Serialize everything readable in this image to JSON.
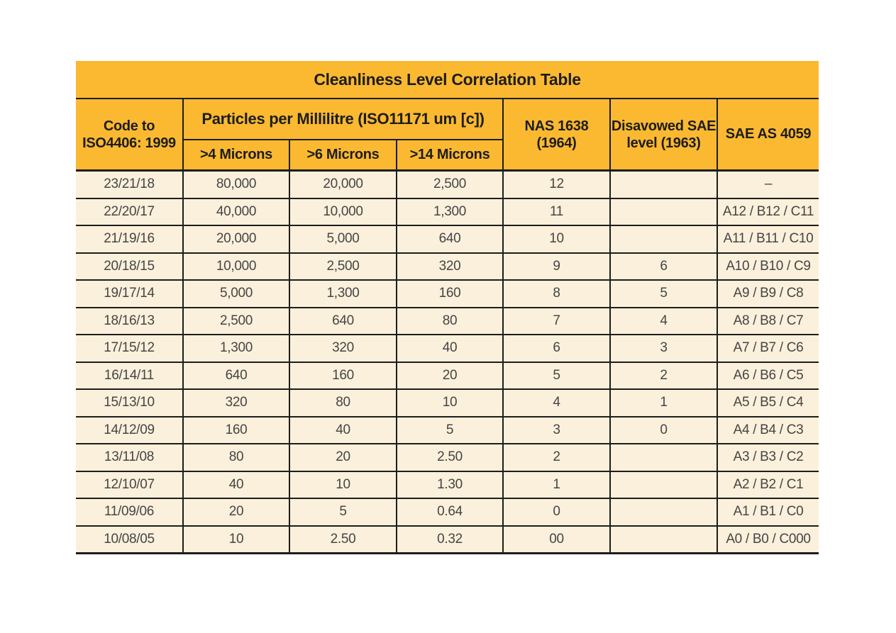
{
  "page": {
    "background": "#FFFFFF"
  },
  "colors": {
    "header_bg": "#FBB932",
    "row_bg": "#FBF0DB",
    "grid_line": "#1D1D1B",
    "header_text": "#1D1D1B",
    "cell_text": "#454545"
  },
  "chart_data": {
    "type": "table",
    "title": "Cleanliness Level Correlation Table",
    "header": {
      "code_col": {
        "line1": "Code to",
        "line2": "ISO4406: 1999"
      },
      "particles_group": "Particles per Millilitre (ISO11171 um [c])",
      "particles_subcols": [
        ">4 Microns",
        ">6 Microns",
        ">14 Microns"
      ],
      "nas_col": {
        "line1": "NAS 1638",
        "line2": "(1964)"
      },
      "disavowed_col": {
        "line1": "Disavowed SAE",
        "line2": "level (1963)"
      },
      "sae_col": "SAE AS 4059"
    },
    "rows": [
      [
        "23/21/18",
        "80,000",
        "20,000",
        "2,500",
        "12",
        "",
        "–"
      ],
      [
        "22/20/17",
        "40,000",
        "10,000",
        "1,300",
        "11",
        "",
        "A12 / B12 / C11"
      ],
      [
        "21/19/16",
        "20,000",
        "5,000",
        "640",
        "10",
        "",
        "A11 / B11 / C10"
      ],
      [
        "20/18/15",
        "10,000",
        "2,500",
        "320",
        "9",
        "6",
        "A10 / B10 / C9"
      ],
      [
        "19/17/14",
        "5,000",
        "1,300",
        "160",
        "8",
        "5",
        "A9 / B9 / C8"
      ],
      [
        "18/16/13",
        "2,500",
        "640",
        "80",
        "7",
        "4",
        "A8 / B8 / C7"
      ],
      [
        "17/15/12",
        "1,300",
        "320",
        "40",
        "6",
        "3",
        "A7 / B7 / C6"
      ],
      [
        "16/14/11",
        "640",
        "160",
        "20",
        "5",
        "2",
        "A6 / B6 / C5"
      ],
      [
        "15/13/10",
        "320",
        "80",
        "10",
        "4",
        "1",
        "A5 / B5 / C4"
      ],
      [
        "14/12/09",
        "160",
        "40",
        "5",
        "3",
        "0",
        "A4 / B4 / C3"
      ],
      [
        "13/11/08",
        "80",
        "20",
        "2.50",
        "2",
        "",
        "A3 / B3 / C2"
      ],
      [
        "12/10/07",
        "40",
        "10",
        "1.30",
        "1",
        "",
        "A2 / B2 / C1"
      ],
      [
        "11/09/06",
        "20",
        "5",
        "0.64",
        "0",
        "",
        "A1 / B1 / C0"
      ],
      [
        "10/08/05",
        "10",
        "2.50",
        "0.32",
        "00",
        "",
        "A0 / B0 / C000"
      ]
    ]
  }
}
